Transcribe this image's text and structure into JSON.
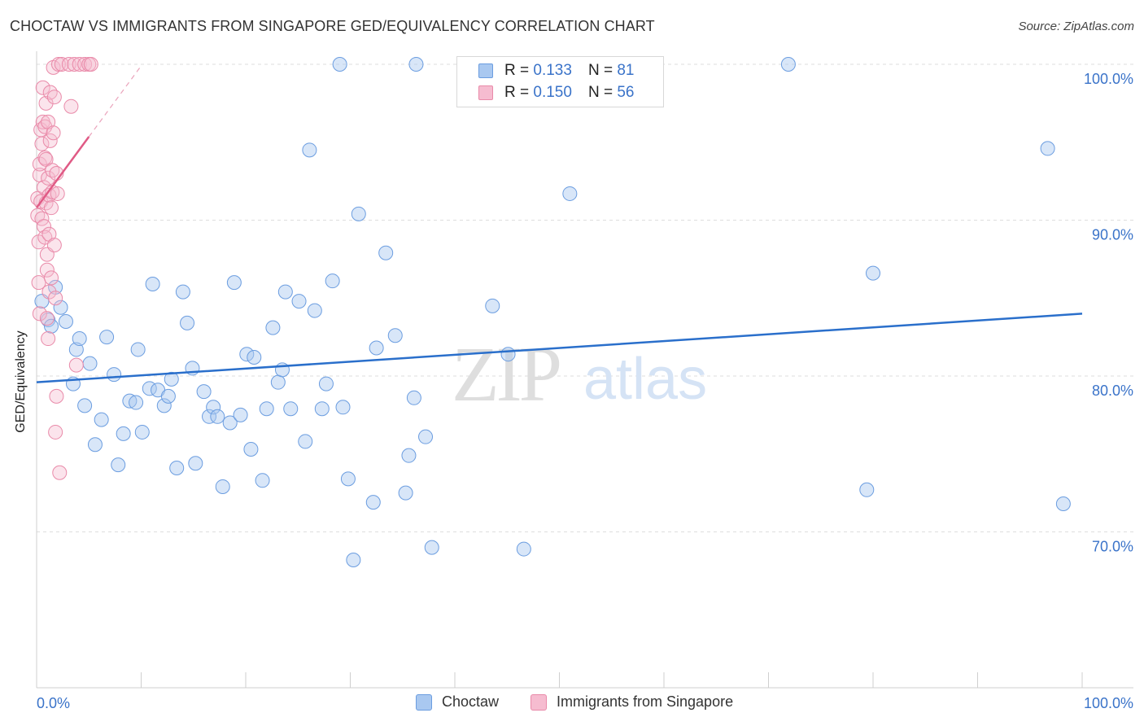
{
  "title": "CHOCTAW VS IMMIGRANTS FROM SINGAPORE GED/EQUIVALENCY CORRELATION CHART",
  "source": "Source: ZipAtlas.com",
  "watermark": {
    "zip": "ZIP",
    "atlas": "atlas"
  },
  "legend": {
    "r_label": "R =",
    "n_label": "N =",
    "series": [
      {
        "name": "Choctaw",
        "r": "0.133",
        "n": "81",
        "fill": "#a9c8f0",
        "stroke": "#6b9de0"
      },
      {
        "name": "Immigrants from Singapore",
        "r": "0.150",
        "n": "56",
        "fill": "#f6bcd0",
        "stroke": "#e98aa9"
      }
    ]
  },
  "chart_data": {
    "type": "scatter",
    "title": "CHOCTAW VS IMMIGRANTS FROM SINGAPORE GED/EQUIVALENCY CORRELATION CHART",
    "xlabel": "",
    "ylabel": "GED/Equivalency",
    "xlim": [
      0,
      100
    ],
    "ylim": [
      60,
      100
    ],
    "x_tick_labels": [
      "0.0%",
      "100.0%"
    ],
    "y_ticks": [
      100,
      90,
      80,
      70
    ],
    "y_tick_labels": [
      "100.0%",
      "90.0%",
      "80.0%",
      "70.0%"
    ],
    "grid": true,
    "series": [
      {
        "name": "Choctaw",
        "color": "#6b9de0",
        "trend": {
          "x": [
            0,
            100
          ],
          "y": [
            79.6,
            84.0
          ],
          "style": "solid",
          "color": "#2a6fcb"
        },
        "points": [
          [
            0.5,
            84.8
          ],
          [
            1.1,
            83.6
          ],
          [
            1.4,
            83.2
          ],
          [
            1.8,
            85.7
          ],
          [
            2.3,
            84.4
          ],
          [
            2.8,
            83.5
          ],
          [
            3.5,
            79.5
          ],
          [
            3.8,
            81.7
          ],
          [
            4.1,
            82.4
          ],
          [
            4.6,
            78.1
          ],
          [
            5.1,
            80.8
          ],
          [
            5.6,
            75.6
          ],
          [
            6.2,
            77.2
          ],
          [
            6.7,
            82.5
          ],
          [
            7.4,
            80.1
          ],
          [
            7.8,
            74.3
          ],
          [
            8.3,
            76.3
          ],
          [
            8.9,
            78.4
          ],
          [
            9.5,
            78.3
          ],
          [
            9.7,
            81.7
          ],
          [
            10.1,
            76.4
          ],
          [
            10.8,
            79.2
          ],
          [
            11.1,
            85.9
          ],
          [
            11.6,
            79.1
          ],
          [
            12.2,
            78.1
          ],
          [
            12.6,
            78.7
          ],
          [
            12.9,
            79.8
          ],
          [
            13.4,
            74.1
          ],
          [
            14.0,
            85.4
          ],
          [
            14.4,
            83.4
          ],
          [
            14.9,
            80.5
          ],
          [
            15.2,
            74.4
          ],
          [
            16.0,
            79.0
          ],
          [
            16.5,
            77.4
          ],
          [
            16.9,
            78.0
          ],
          [
            17.3,
            77.4
          ],
          [
            17.8,
            72.9
          ],
          [
            18.5,
            77.0
          ],
          [
            18.9,
            86.0
          ],
          [
            19.5,
            77.5
          ],
          [
            20.1,
            81.4
          ],
          [
            20.5,
            75.3
          ],
          [
            20.8,
            81.2
          ],
          [
            21.6,
            73.3
          ],
          [
            22.0,
            77.9
          ],
          [
            22.6,
            83.1
          ],
          [
            23.1,
            79.6
          ],
          [
            23.5,
            80.4
          ],
          [
            23.8,
            85.4
          ],
          [
            24.3,
            77.9
          ],
          [
            25.1,
            84.8
          ],
          [
            25.7,
            75.8
          ],
          [
            26.1,
            94.5
          ],
          [
            26.6,
            84.2
          ],
          [
            27.3,
            77.9
          ],
          [
            27.7,
            79.5
          ],
          [
            28.3,
            86.1
          ],
          [
            29.0,
            100.0
          ],
          [
            29.3,
            78.0
          ],
          [
            29.8,
            73.4
          ],
          [
            30.3,
            68.2
          ],
          [
            30.8,
            90.4
          ],
          [
            32.2,
            71.9
          ],
          [
            32.5,
            81.8
          ],
          [
            33.4,
            87.9
          ],
          [
            34.3,
            82.6
          ],
          [
            35.3,
            72.5
          ],
          [
            35.6,
            74.9
          ],
          [
            36.1,
            78.6
          ],
          [
            36.3,
            100.0
          ],
          [
            37.2,
            76.1
          ],
          [
            37.8,
            69.0
          ],
          [
            43.6,
            84.5
          ],
          [
            45.1,
            81.4
          ],
          [
            46.6,
            68.9
          ],
          [
            51.0,
            91.7
          ],
          [
            71.9,
            100.0
          ],
          [
            79.4,
            72.7
          ],
          [
            80.0,
            86.6
          ],
          [
            96.7,
            94.6
          ],
          [
            98.2,
            71.8
          ]
        ]
      },
      {
        "name": "Immigrants from Singapore",
        "color": "#e98aa9",
        "trend": {
          "x": [
            0,
            10
          ],
          "y": [
            90.8,
            99.9
          ],
          "solid_until_x": 5.0,
          "style": "solid-then-dashed",
          "color": "#e05a85"
        },
        "points": [
          [
            0.1,
            91.4
          ],
          [
            0.1,
            90.3
          ],
          [
            0.2,
            88.6
          ],
          [
            0.2,
            86.0
          ],
          [
            0.3,
            84.0
          ],
          [
            0.3,
            92.9
          ],
          [
            0.3,
            93.6
          ],
          [
            0.4,
            95.8
          ],
          [
            0.4,
            91.2
          ],
          [
            0.5,
            90.1
          ],
          [
            0.5,
            94.9
          ],
          [
            0.6,
            96.3
          ],
          [
            0.6,
            98.5
          ],
          [
            0.7,
            92.1
          ],
          [
            0.7,
            89.6
          ],
          [
            0.8,
            88.9
          ],
          [
            0.8,
            96.0
          ],
          [
            0.8,
            94.0
          ],
          [
            0.9,
            97.5
          ],
          [
            0.9,
            93.9
          ],
          [
            0.9,
            91.1
          ],
          [
            1.0,
            87.8
          ],
          [
            1.0,
            86.8
          ],
          [
            1.0,
            83.7
          ],
          [
            1.1,
            82.4
          ],
          [
            1.1,
            96.3
          ],
          [
            1.1,
            92.7
          ],
          [
            1.2,
            91.6
          ],
          [
            1.2,
            89.1
          ],
          [
            1.2,
            85.4
          ],
          [
            1.3,
            95.1
          ],
          [
            1.3,
            98.2
          ],
          [
            1.4,
            90.8
          ],
          [
            1.4,
            86.3
          ],
          [
            1.5,
            93.2
          ],
          [
            1.5,
            91.8
          ],
          [
            1.6,
            99.8
          ],
          [
            1.6,
            95.6
          ],
          [
            1.7,
            97.9
          ],
          [
            1.7,
            88.4
          ],
          [
            1.8,
            85.0
          ],
          [
            1.8,
            76.4
          ],
          [
            1.9,
            78.7
          ],
          [
            1.9,
            93.0
          ],
          [
            2.0,
            91.7
          ],
          [
            2.1,
            100.0
          ],
          [
            2.2,
            73.8
          ],
          [
            2.4,
            100.0
          ],
          [
            3.1,
            100.0
          ],
          [
            3.3,
            97.3
          ],
          [
            3.6,
            100.0
          ],
          [
            3.8,
            80.7
          ],
          [
            4.1,
            100.0
          ],
          [
            4.6,
            100.0
          ],
          [
            5.0,
            100.0
          ],
          [
            5.2,
            100.0
          ]
        ]
      }
    ]
  }
}
